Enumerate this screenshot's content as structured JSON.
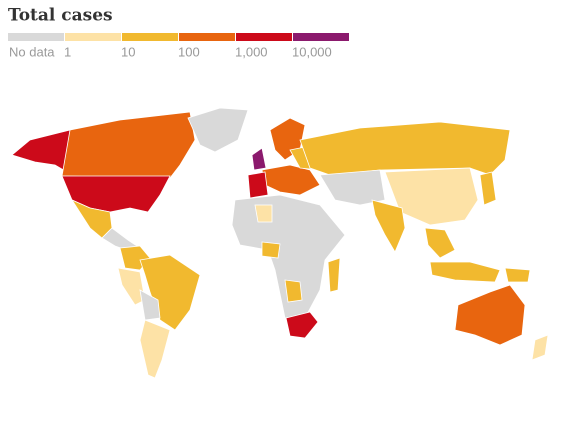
{
  "title": "Total cases",
  "legend": [
    {
      "label": "No data",
      "color": "#d9d9d9"
    },
    {
      "label": "1",
      "color": "#fde2a6"
    },
    {
      "label": "10",
      "color": "#f1b92f"
    },
    {
      "label": "100",
      "color": "#e8650f"
    },
    {
      "label": "1,000",
      "color": "#cc0a1a"
    },
    {
      "label": "10,000",
      "color": "#8b1a6d"
    }
  ]
}
